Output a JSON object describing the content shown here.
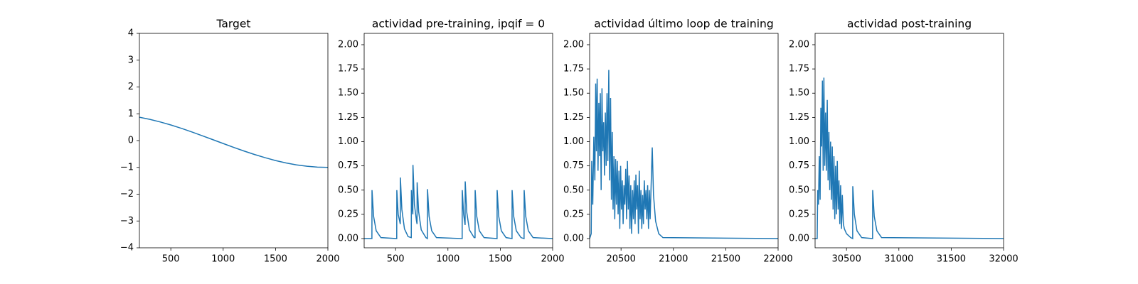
{
  "chart_data": [
    {
      "type": "line",
      "title": "Target",
      "color": "#1f77b4",
      "x": [
        200,
        300,
        400,
        500,
        600,
        700,
        800,
        900,
        1000,
        1100,
        1200,
        1300,
        1400,
        1500,
        1600,
        1700,
        1800,
        1900,
        2000
      ],
      "values": [
        0.872,
        0.792,
        0.694,
        0.582,
        0.458,
        0.322,
        0.181,
        0.036,
        -0.109,
        -0.253,
        -0.391,
        -0.52,
        -0.638,
        -0.744,
        -0.834,
        -0.907,
        -0.958,
        -0.989,
        -1
      ],
      "xlim": [
        200,
        2000
      ],
      "xticks": [
        500,
        1000,
        1500,
        2000
      ],
      "ylim": [
        -4,
        4
      ],
      "yticks": [
        {
          "value": -4,
          "label": "−4"
        },
        {
          "value": -3,
          "label": "−3"
        },
        {
          "value": -2,
          "label": "−2"
        },
        {
          "value": -1,
          "label": "−1"
        },
        0,
        1,
        2,
        3,
        4
      ]
    },
    {
      "type": "line",
      "title": "actividad pre-training, ipqif = 0",
      "color": "#1f77b4",
      "x": [
        200,
        274,
        275,
        290,
        315,
        360,
        511,
        512,
        525,
        545,
        546,
        560,
        585,
        620,
        650,
        651,
        660,
        665,
        666,
        680,
        700,
        705,
        706,
        720,
        745,
        790,
        804,
        805,
        820,
        845,
        890,
        1136,
        1137,
        1150,
        1164,
        1165,
        1180,
        1205,
        1250,
        1259,
        1260,
        1275,
        1300,
        1345,
        1469,
        1470,
        1485,
        1510,
        1555,
        1612,
        1613,
        1628,
        1653,
        1698,
        1727,
        1728,
        1743,
        1768,
        1813,
        2000
      ],
      "values": [
        0,
        0,
        0.5,
        0.23,
        0.08,
        0.01,
        0,
        0.5,
        0.25,
        0.15,
        0.63,
        0.3,
        0.1,
        0.02,
        0.01,
        0.5,
        0.3,
        0.25,
        0.76,
        0.35,
        0.18,
        0.15,
        0.58,
        0.28,
        0.09,
        0.01,
        0,
        0.51,
        0.23,
        0.08,
        0.01,
        0,
        0.5,
        0.25,
        0.14,
        0.59,
        0.27,
        0.09,
        0.01,
        0.01,
        0.5,
        0.23,
        0.08,
        0.01,
        0,
        0.5,
        0.23,
        0.08,
        0.01,
        0,
        0.5,
        0.23,
        0.08,
        0.01,
        0,
        0.5,
        0.23,
        0.08,
        0.01,
        0
      ],
      "xlim": [
        200,
        2000
      ],
      "xticks": [
        500,
        1000,
        1500,
        2000
      ],
      "ylim": [
        -0.095,
        2.117
      ],
      "yticks": [
        {
          "value": 0,
          "label": "0.00"
        },
        0.25,
        {
          "value": 0.5,
          "label": "0.50"
        },
        0.75,
        {
          "value": 1,
          "label": "1.00"
        },
        1.25,
        {
          "value": 1.5,
          "label": "1.50"
        },
        1.75,
        {
          "value": 2,
          "label": "2.00"
        }
      ]
    },
    {
      "type": "line",
      "title": "actividad último loop de training",
      "color": "#1f77b4",
      "x": [
        20200,
        20215,
        20220,
        20230,
        20240,
        20250,
        20258,
        20265,
        20272,
        20280,
        20288,
        20295,
        20302,
        20310,
        20318,
        20326,
        20334,
        20342,
        20350,
        20358,
        20366,
        20374,
        20383,
        20391,
        20400,
        20408,
        20416,
        20424,
        20432,
        20440,
        20448,
        20456,
        20464,
        20472,
        20480,
        20488,
        20496,
        20504,
        20512,
        20520,
        20528,
        20536,
        20545,
        20553,
        20561,
        20569,
        20577,
        20585,
        20593,
        20601,
        20610,
        20618,
        20626,
        20634,
        20642,
        20650,
        20658,
        20666,
        20674,
        20682,
        20690,
        20698,
        20706,
        20714,
        20722,
        20730,
        20738,
        20746,
        20754,
        20762,
        20770,
        20778,
        20786,
        20798,
        20810,
        20830,
        20860,
        20900,
        22000
      ],
      "values": [
        0,
        0.05,
        0.8,
        0.35,
        1.05,
        0.6,
        1.6,
        0.9,
        1.65,
        0.7,
        1.4,
        0.85,
        1.5,
        0.5,
        1.55,
        0.9,
        1.2,
        0.65,
        1.3,
        0.75,
        1.5,
        0.8,
        1.74,
        0.6,
        1.45,
        0.4,
        1.1,
        0.3,
        0.85,
        0.2,
        0.82,
        0.35,
        0.8,
        0.25,
        0.7,
        0.1,
        0.75,
        0.3,
        0.6,
        0.15,
        0.55,
        0.35,
        0.72,
        0.2,
        0.8,
        0.3,
        0.65,
        0.1,
        0.55,
        0.05,
        0.5,
        0.2,
        0.6,
        0.15,
        0.66,
        0.3,
        0.55,
        0.05,
        0.7,
        0.2,
        0.5,
        0.1,
        0.45,
        0.15,
        0.6,
        0.3,
        0.5,
        0.2,
        0.55,
        0.1,
        0.5,
        0.2,
        0.5,
        0.94,
        0.45,
        0.18,
        0.05,
        0.01,
        0
      ],
      "xlim": [
        20200,
        22000
      ],
      "xticks": [
        20500,
        21000,
        21500,
        22000
      ],
      "ylim": [
        -0.095,
        2.117
      ],
      "yticks": [
        {
          "value": 0,
          "label": "0.00"
        },
        0.25,
        {
          "value": 0.5,
          "label": "0.50"
        },
        0.75,
        {
          "value": 1,
          "label": "1.00"
        },
        1.25,
        {
          "value": 1.5,
          "label": "1.50"
        },
        1.75,
        {
          "value": 2,
          "label": "2.00"
        }
      ]
    },
    {
      "type": "line",
      "title": "actividad post-training",
      "color": "#1f77b4",
      "x": [
        30200,
        30220,
        30225,
        30232,
        30240,
        30248,
        30255,
        30262,
        30270,
        30277,
        30284,
        30292,
        30300,
        30308,
        30316,
        30324,
        30332,
        30340,
        30348,
        30356,
        30364,
        30372,
        30380,
        30388,
        30396,
        30404,
        30412,
        30420,
        30428,
        30436,
        30444,
        30452,
        30460,
        30470,
        30480,
        30500,
        30540,
        30559,
        30560,
        30575,
        30600,
        30645,
        30749,
        30750,
        30765,
        30790,
        30835,
        32000
      ],
      "values": [
        0,
        0,
        0.5,
        0.35,
        0.85,
        0.4,
        1.35,
        0.95,
        1.63,
        0.7,
        1.66,
        0.75,
        1.3,
        0.7,
        1.43,
        0.6,
        1.1,
        0.5,
        1.0,
        0.4,
        0.95,
        0.3,
        0.85,
        0.2,
        0.75,
        0.25,
        0.8,
        0.3,
        0.6,
        0.15,
        0.55,
        0.1,
        0.45,
        0.15,
        0.1,
        0.05,
        0.01,
        0,
        0.54,
        0.25,
        0.08,
        0.01,
        0,
        0.5,
        0.23,
        0.08,
        0.01,
        0
      ],
      "xlim": [
        30200,
        32000
      ],
      "xticks": [
        30500,
        31000,
        31500,
        32000
      ],
      "ylim": [
        -0.095,
        2.117
      ],
      "yticks": [
        {
          "value": 0,
          "label": "0.00"
        },
        0.25,
        {
          "value": 0.5,
          "label": "0.50"
        },
        0.75,
        {
          "value": 1,
          "label": "1.00"
        },
        1.25,
        {
          "value": 1.5,
          "label": "1.50"
        },
        1.75,
        {
          "value": 2,
          "label": "2.00"
        }
      ]
    }
  ]
}
